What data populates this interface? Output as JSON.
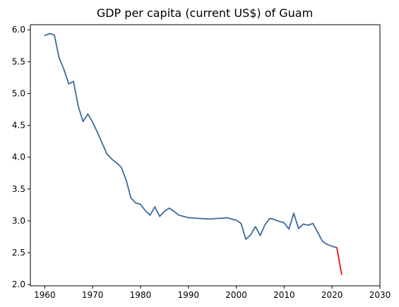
{
  "chart_data": {
    "type": "line",
    "title": "GDP per capita (current US$) of Guam",
    "xlabel": "",
    "ylabel": "",
    "xlim": [
      1957,
      2030
    ],
    "ylim": [
      1.98,
      6.08
    ],
    "xticks": [
      1960,
      1970,
      1980,
      1990,
      2000,
      2010,
      2020,
      2030
    ],
    "yticks": [
      2.0,
      2.5,
      3.0,
      3.5,
      4.0,
      4.5,
      5.0,
      5.5,
      6.0
    ],
    "xtick_labels": [
      "1960",
      "1970",
      "1980",
      "1990",
      "2000",
      "2010",
      "2020",
      "2030"
    ],
    "ytick_labels": [
      "2.0",
      "2.5",
      "3.0",
      "3.5",
      "4.0",
      "4.5",
      "5.0",
      "5.5",
      "6.0"
    ],
    "grid": false,
    "series": [
      {
        "color": "#3a6a9e",
        "x": [
          1960,
          1961,
          1962,
          1963,
          1964,
          1965,
          1966,
          1967,
          1968,
          1969,
          1970,
          1971,
          1972,
          1973,
          1974,
          1975,
          1976,
          1977,
          1978,
          1979,
          1980,
          1981,
          1982,
          1983,
          1984,
          1985,
          1986,
          1987,
          1988,
          1989,
          1990,
          1991,
          1992,
          1993,
          1994,
          1995,
          1996,
          1997,
          1998,
          1999,
          2000,
          2001,
          2002,
          2003,
          2004,
          2005,
          2006,
          2007,
          2008,
          2009,
          2010,
          2011,
          2012,
          2013,
          2014,
          2015,
          2016,
          2017,
          2018,
          2019,
          2020,
          2021
        ],
        "y": [
          5.91,
          5.94,
          5.92,
          5.56,
          5.38,
          5.15,
          5.19,
          4.8,
          4.56,
          4.68,
          4.55,
          4.39,
          4.22,
          4.05,
          3.97,
          3.91,
          3.84,
          3.64,
          3.36,
          3.28,
          3.26,
          3.16,
          3.09,
          3.22,
          3.07,
          3.15,
          3.2,
          3.15,
          3.09,
          3.07,
          3.05,
          3.045,
          3.04,
          3.035,
          3.03,
          3.03,
          3.04,
          3.04,
          3.05,
          3.03,
          3.01,
          2.96,
          2.71,
          2.78,
          2.91,
          2.77,
          2.94,
          3.04,
          3.02,
          2.99,
          2.97,
          2.87,
          3.12,
          2.88,
          2.95,
          2.93,
          2.96,
          2.82,
          2.68,
          2.63,
          2.6,
          2.58
        ]
      },
      {
        "color": "#e8140c",
        "x": [
          2021,
          2022
        ],
        "y": [
          2.58,
          2.16
        ]
      }
    ]
  }
}
